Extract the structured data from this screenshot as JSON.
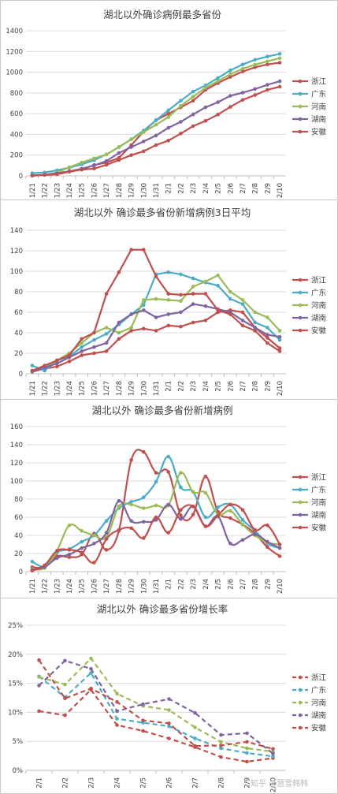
{
  "colors": {
    "zhejiang": "#c0504d",
    "guangdong": "#4bacc6",
    "henan": "#9bbb59",
    "hunan": "#8064a2",
    "anhui": "#c0504d"
  },
  "watermark": "知乎 @慧雪韩韩",
  "chart_data": [
    {
      "type": "line",
      "title": "湖北以外确诊病例最多省份",
      "categories": [
        "1/21",
        "1/22",
        "1/23",
        "1/24",
        "1/25",
        "1/26",
        "1/27",
        "1/28",
        "1/29",
        "1/30",
        "1/31",
        "2/1",
        "2/2",
        "2/3",
        "2/4",
        "2/5",
        "2/6",
        "2/7",
        "2/8",
        "2/9",
        "2/10"
      ],
      "yticks": [
        "0",
        "200",
        "400",
        "600",
        "800",
        "1000",
        "1200",
        "1400"
      ],
      "ylim": [
        0,
        1400
      ],
      "series": [
        {
          "name": "浙江",
          "key": "zhejiang",
          "dash": false,
          "values": [
            5,
            10,
            27,
            43,
            62,
            104,
            128,
            173,
            296,
            428,
            537,
            599,
            661,
            724,
            829,
            895,
            954,
            1006,
            1048,
            1075,
            1092
          ]
        },
        {
          "name": "广东",
          "key": "guangdong",
          "dash": false,
          "values": [
            26,
            32,
            53,
            78,
            111,
            151,
            207,
            277,
            354,
            436,
            535,
            632,
            725,
            813,
            873,
            944,
            1018,
            1075,
            1120,
            1151,
            1177
          ]
        },
        {
          "name": "河南",
          "key": "henan",
          "dash": false,
          "values": [
            5,
            9,
            32,
            83,
            128,
            168,
            206,
            278,
            352,
            422,
            493,
            566,
            675,
            764,
            851,
            914,
            981,
            1033,
            1073,
            1105,
            1135
          ]
        },
        {
          "name": "湖南",
          "key": "hunan",
          "dash": false,
          "values": [
            4,
            9,
            24,
            43,
            69,
            100,
            143,
            221,
            277,
            332,
            389,
            463,
            521,
            593,
            661,
            711,
            772,
            803,
            838,
            879,
            912
          ]
        },
        {
          "name": "安徽",
          "key": "anhui",
          "dash": false,
          "values": [
            1,
            8,
            15,
            39,
            60,
            70,
            106,
            152,
            200,
            237,
            297,
            340,
            408,
            480,
            530,
            591,
            665,
            733,
            779,
            830,
            860
          ]
        }
      ]
    },
    {
      "type": "line",
      "title": "湖北以外 确诊最多省份新增病例3日平均",
      "categories": [
        "1/21",
        "1/22",
        "1/23",
        "1/24",
        "1/25",
        "1/26",
        "1/27",
        "1/28",
        "1/29",
        "1/30",
        "1/31",
        "2/1",
        "2/2",
        "2/3",
        "2/4",
        "2/5",
        "2/6",
        "2/7",
        "2/8",
        "2/9",
        "2/10"
      ],
      "yticks": [
        "0",
        "20",
        "40",
        "60",
        "80",
        "100",
        "120",
        "140"
      ],
      "ylim": [
        0,
        140
      ],
      "series": [
        {
          "name": "浙江",
          "key": "zhejiang",
          "dash": false,
          "values": [
            2,
            5,
            7,
            12,
            18,
            20,
            22,
            34,
            42,
            44,
            42,
            47,
            46,
            50,
            52,
            60,
            62,
            60,
            45,
            35,
            25
          ]
        },
        {
          "name": "广东",
          "key": "guangdong",
          "dash": false,
          "values": [
            8,
            3,
            13,
            17,
            26,
            33,
            39,
            48,
            58,
            67,
            97,
            99,
            97,
            93,
            89,
            86,
            73,
            68,
            50,
            45,
            33
          ]
        },
        {
          "name": "河南",
          "key": "henan",
          "dash": false,
          "values": [
            3,
            6,
            13,
            20,
            30,
            40,
            45,
            40,
            45,
            72,
            73,
            72,
            71,
            85,
            90,
            96,
            80,
            72,
            60,
            55,
            42
          ]
        },
        {
          "name": "湖南",
          "key": "hunan",
          "dash": false,
          "values": [
            2,
            6,
            10,
            16,
            22,
            26,
            30,
            50,
            58,
            62,
            55,
            58,
            60,
            68,
            66,
            63,
            60,
            52,
            45,
            38,
            36
          ]
        },
        {
          "name": "安徽",
          "key": "anhui",
          "dash": false,
          "values": [
            3,
            8,
            13,
            18,
            34,
            40,
            78,
            99,
            121,
            121,
            95,
            78,
            77,
            78,
            78,
            62,
            58,
            47,
            42,
            30,
            22
          ]
        }
      ]
    },
    {
      "type": "line",
      "title": "湖北以外 确诊最多省份新增病例",
      "categories": [
        "1/21",
        "1/22",
        "1/23",
        "1/24",
        "1/25",
        "1/26",
        "1/27",
        "1/28",
        "1/29",
        "1/30",
        "1/31",
        "2/1",
        "2/2",
        "2/3",
        "2/4",
        "2/5",
        "2/6",
        "2/7",
        "2/8",
        "2/9",
        "2/10"
      ],
      "yticks": [
        "0",
        "20",
        "40",
        "60",
        "80",
        "100",
        "120",
        "140",
        "160"
      ],
      "ylim": [
        0,
        160
      ],
      "series": [
        {
          "name": "浙江",
          "key": "zhejiang",
          "dash": false,
          "values": [
            5,
            5,
            17,
            16,
            19,
            42,
            24,
            45,
            123,
            132,
            109,
            110,
            62,
            63,
            105,
            66,
            59,
            52,
            42,
            27,
            17
          ]
        },
        {
          "name": "广东",
          "key": "guangdong",
          "dash": false,
          "values": [
            11,
            6,
            21,
            25,
            33,
            40,
            56,
            70,
            77,
            82,
            99,
            127,
            93,
            88,
            60,
            71,
            74,
            57,
            45,
            31,
            26
          ]
        },
        {
          "name": "河南",
          "key": "henan",
          "dash": false,
          "values": [
            3,
            4,
            23,
            51,
            45,
            40,
            38,
            72,
            74,
            70,
            73,
            73,
            109,
            88,
            87,
            63,
            67,
            52,
            40,
            32,
            30
          ]
        },
        {
          "name": "湖南",
          "key": "hunan",
          "dash": false,
          "values": [
            2,
            5,
            15,
            19,
            26,
            31,
            43,
            78,
            56,
            55,
            57,
            74,
            58,
            72,
            50,
            61,
            31,
            35,
            41,
            33,
            26
          ]
        },
        {
          "name": "安徽",
          "key": "anhui",
          "dash": false,
          "values": [
            1,
            7,
            23,
            24,
            21,
            10,
            36,
            46,
            48,
            37,
            60,
            43,
            68,
            72,
            50,
            62,
            74,
            68,
            46,
            51,
            30
          ]
        }
      ]
    },
    {
      "type": "line",
      "title": "湖北以外 确诊最多省份增长率",
      "categories": [
        "2/1",
        "2/2",
        "2/3",
        "2/4",
        "2/5",
        "2/6",
        "2/7",
        "2/8",
        "2/9",
        "2/10"
      ],
      "yticks": [
        "0%",
        "5%",
        "10%",
        "15%",
        "20%",
        "25%"
      ],
      "ylim": [
        0,
        25
      ],
      "series": [
        {
          "name": "浙江",
          "key": "zhejiang",
          "dash": true,
          "values": [
            10.2,
            9.5,
            13.9,
            7.8,
            6.8,
            5.5,
            4.0,
            2.3,
            1.5,
            2.1
          ]
        },
        {
          "name": "广东",
          "key": "guangdong",
          "dash": true,
          "values": [
            16.2,
            12.6,
            16.8,
            8.9,
            8.2,
            7.6,
            5.5,
            3.8,
            3.0,
            2.4
          ]
        },
        {
          "name": "河南",
          "key": "henan",
          "dash": true,
          "values": [
            16.1,
            14.8,
            19.3,
            13.2,
            11.1,
            10.4,
            7.4,
            4.9,
            3.8,
            3.2
          ]
        },
        {
          "name": "湖南",
          "key": "hunan",
          "dash": true,
          "values": [
            14.6,
            18.9,
            17.5,
            10.2,
            11.4,
            12.3,
            9.9,
            6.1,
            6.4,
            2.9
          ]
        },
        {
          "name": "安徽",
          "key": "anhui",
          "dash": true,
          "values": [
            19.0,
            12.4,
            14.1,
            11.8,
            8.6,
            8.1,
            4.2,
            4.3,
            4.9,
            3.7
          ]
        }
      ]
    }
  ]
}
